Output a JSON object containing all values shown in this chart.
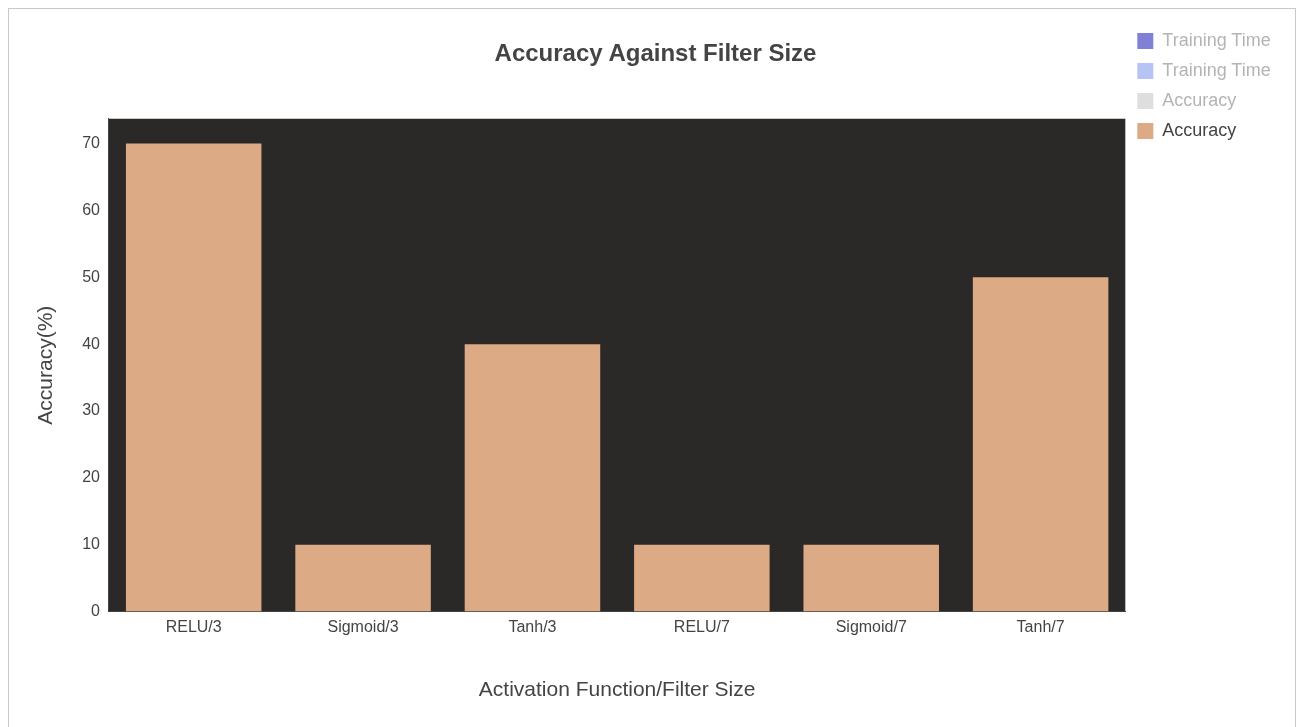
{
  "chart_data": {
    "type": "bar",
    "title": "Accuracy Against Filter Size",
    "xlabel": "Activation Function/Filter Size",
    "ylabel": "Accuracy(%)",
    "categories": [
      "RELU/3",
      "Sigmoid/3",
      "Tanh/3",
      "RELU/7",
      "Sigmoid/7",
      "Tanh/7"
    ],
    "series": [
      {
        "name": "Training Time",
        "color": "#7f80d6",
        "values": [
          null,
          null,
          null,
          null,
          null,
          null
        ]
      },
      {
        "name": "Training Time",
        "color": "#b5c3f5",
        "values": [
          null,
          null,
          null,
          null,
          null,
          null
        ]
      },
      {
        "name": "Accuracy",
        "color": "#dedede",
        "values": [
          null,
          null,
          null,
          null,
          null,
          null
        ]
      },
      {
        "name": "Accuracy",
        "color": "#dcaa84",
        "values": [
          70,
          10,
          40,
          10,
          10,
          50
        ]
      }
    ],
    "ylim": [
      0,
      73.7
    ],
    "yticks": [
      0,
      10,
      20,
      30,
      40,
      50,
      60,
      70
    ],
    "grid": false,
    "legend": "top right"
  }
}
